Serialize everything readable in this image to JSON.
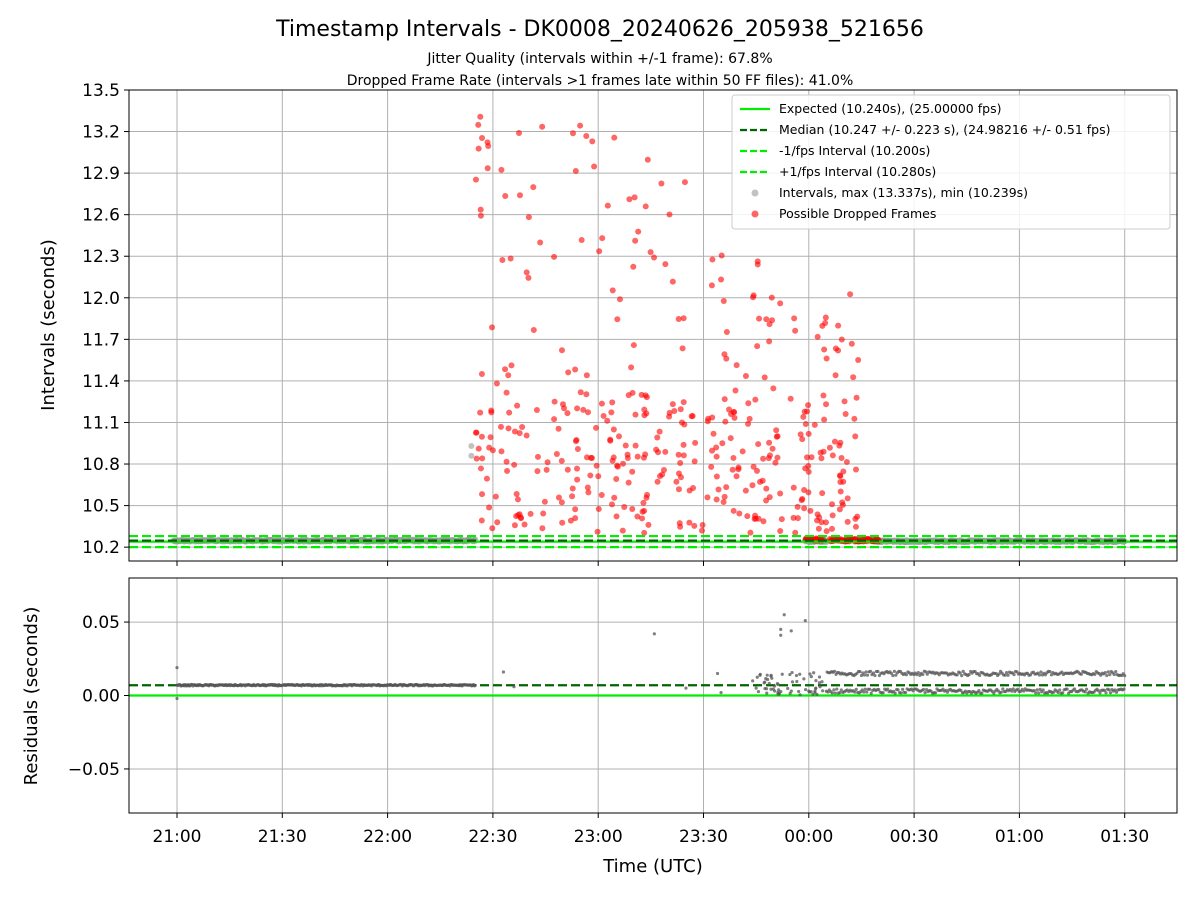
{
  "chart_data": [
    {
      "type": "scatter",
      "title": "Timestamp Intervals - DK0008_20240626_205938_521656",
      "subtitle_lines": [
        "Jitter Quality (intervals within +/-1 frame): 67.8%",
        "Dropped Frame Rate (intervals >1 frames late within 50 FF files): 41.0%"
      ],
      "ylabel": "Intervals (seconds)",
      "ylim": [
        10.1,
        13.5
      ],
      "yticks": [
        "10.2",
        "10.5",
        "10.8",
        "11.1",
        "11.4",
        "11.7",
        "12.0",
        "12.3",
        "12.6",
        "12.9",
        "13.2",
        "13.5"
      ],
      "grid": true,
      "legend_position": "top-right",
      "reference_lines": [
        {
          "name": "Expected (10.240s), (25.00000 fps)",
          "y": 10.24,
          "color": "#00ee00",
          "style": "solid"
        },
        {
          "name": "Median (10.247 +/- 0.223 s), (24.98216 +/- 0.51 fps)",
          "y": 10.247,
          "color": "#006400",
          "style": "dashed"
        },
        {
          "name": "-1/fps Interval (10.200s)",
          "y": 10.2,
          "color": "#00ee00",
          "style": "dashed"
        },
        {
          "name": "+1/fps Interval (10.280s)",
          "y": 10.28,
          "color": "#00ee00",
          "style": "dashed"
        }
      ],
      "series": [
        {
          "name": "Intervals, max (13.337s), min (10.239s)",
          "color": "#999999",
          "segments": [
            {
              "x_start": "20:59",
              "x_end": "22:25",
              "count": 500,
              "y": 10.247
            },
            {
              "x_start": "23:59",
              "x_end": "00:05",
              "count": 45,
              "y": 10.243
            },
            {
              "x_start": "00:19",
              "x_end": "01:30",
              "count": 410,
              "y": 10.243
            }
          ],
          "points": [
            {
              "x": "22:25",
              "y": 10.93
            },
            {
              "x": "22:25",
              "y": 10.86
            }
          ]
        },
        {
          "name": "Possible Dropped Frames",
          "color": "#ff0000",
          "time_range": [
            "22:25",
            "00:15"
          ],
          "y_range": [
            10.26,
            13.34
          ],
          "band_points": [
            {
              "x_start": "00:06",
              "x_end": "00:20",
              "count": 80,
              "y": 10.25
            },
            {
              "x_start": "23:59",
              "x_end": "00:04",
              "count": 28,
              "y": 10.255
            }
          ]
        }
      ]
    },
    {
      "type": "scatter",
      "xlabel": "Time (UTC)",
      "ylabel": "Residuals (seconds)",
      "ylim": [
        -0.08,
        0.08
      ],
      "yticks": [
        "0.00",
        "0.05",
        "−0.05"
      ],
      "xticks": [
        "21:00",
        "21:30",
        "22:00",
        "22:30",
        "23:00",
        "23:30",
        "00:00",
        "00:30",
        "01:00",
        "01:30"
      ],
      "grid": true,
      "reference_lines": [
        {
          "y": 0.0,
          "color": "#00ee00",
          "style": "solid"
        },
        {
          "y": 0.007,
          "color": "#006400",
          "style": "dashed"
        }
      ],
      "series": [
        {
          "color": "#555555",
          "segments": [
            {
              "x_start": "21:00",
              "x_end": "22:25",
              "count": 320,
              "y": 0.007
            },
            {
              "x_start": "00:05",
              "x_end": "01:30",
              "pattern": "alternating",
              "levels": [
                0.003,
                0.015
              ]
            },
            {
              "x_start": "23:45",
              "x_end": "00:04",
              "pattern": "scatter",
              "range": [
                0.0,
                0.016
              ]
            }
          ],
          "points": [
            {
              "x": "21:00",
              "y": 0.019
            },
            {
              "x": "21:00",
              "y": -0.002
            },
            {
              "x": "22:33",
              "y": 0.016
            },
            {
              "x": "22:36",
              "y": 0.006
            },
            {
              "x": "23:16",
              "y": 0.042
            },
            {
              "x": "23:25",
              "y": 0.005
            },
            {
              "x": "23:34",
              "y": 0.015
            },
            {
              "x": "23:35",
              "y": 0.002
            },
            {
              "x": "23:44",
              "y": 0.01
            },
            {
              "x": "23:45",
              "y": 0.005
            },
            {
              "x": "23:52",
              "y": 0.045
            },
            {
              "x": "23:52",
              "y": 0.041
            },
            {
              "x": "23:53",
              "y": 0.055
            },
            {
              "x": "23:55",
              "y": 0.044
            },
            {
              "x": "23:59",
              "y": 0.051
            }
          ]
        }
      ]
    }
  ]
}
